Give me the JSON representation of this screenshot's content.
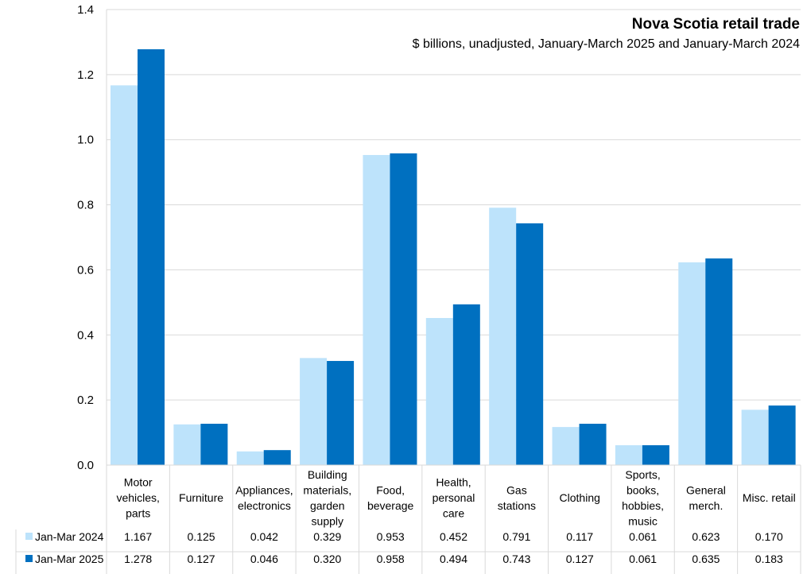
{
  "chart_data": {
    "type": "bar",
    "title": "Nova Scotia retail trade",
    "subtitle": "$ billions, unadjusted, January-March 2025 and January-March 2024",
    "xlabel": "",
    "ylabel": "",
    "ylim": [
      0,
      1.4
    ],
    "yticks": [
      "0.0",
      "0.2",
      "0.4",
      "0.6",
      "0.8",
      "1.0",
      "1.2",
      "1.4"
    ],
    "categories": [
      [
        "Motor",
        "vehicles,",
        "parts"
      ],
      [
        "Furniture"
      ],
      [
        "Appliances,",
        "electronics"
      ],
      [
        "Building",
        "materials,",
        "garden",
        "supply"
      ],
      [
        "Food,",
        "beverage"
      ],
      [
        "Health,",
        "personal",
        "care"
      ],
      [
        "Gas",
        "stations"
      ],
      [
        "Clothing"
      ],
      [
        "Sports,",
        "books,",
        "hobbies,",
        "music"
      ],
      [
        "General",
        "merch."
      ],
      [
        "Misc. retail"
      ]
    ],
    "series": [
      {
        "name": "Jan-Mar 2024",
        "color": "#bde3fb",
        "values": [
          1.167,
          0.125,
          0.042,
          0.329,
          0.953,
          0.452,
          0.791,
          0.117,
          0.061,
          0.623,
          0.17
        ],
        "labels": [
          "1.167",
          "0.125",
          "0.042",
          "0.329",
          "0.953",
          "0.452",
          "0.791",
          "0.117",
          "0.061",
          "0.623",
          "0.170"
        ]
      },
      {
        "name": "Jan-Mar 2025",
        "color": "#0070c0",
        "values": [
          1.278,
          0.127,
          0.046,
          0.32,
          0.958,
          0.494,
          0.743,
          0.127,
          0.061,
          0.635,
          0.183
        ],
        "labels": [
          "1.278",
          "0.127",
          "0.046",
          "0.320",
          "0.958",
          "0.494",
          "0.743",
          "0.127",
          "0.061",
          "0.635",
          "0.183"
        ]
      }
    ],
    "grid": true,
    "legend": "data-table"
  }
}
